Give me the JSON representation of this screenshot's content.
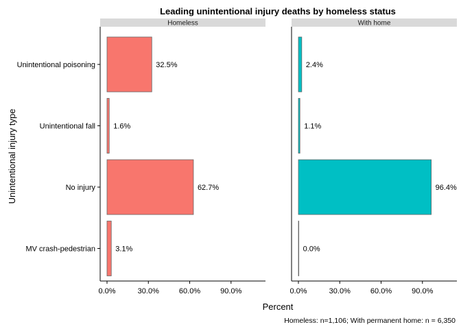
{
  "chart_data": {
    "type": "bar",
    "orientation": "horizontal",
    "title": "Leading unintentional injury deaths by homeless status",
    "xlabel": "Percent",
    "ylabel": "Unintentional injury type",
    "caption": "Homeless: n=1,106; With permanent home: n = 6,350",
    "categories": [
      "Unintentional poisoning",
      "Unintentional fall",
      "No injury",
      "MV crash-pedestrian"
    ],
    "xlim": [
      0,
      115
    ],
    "xticks": [
      0,
      30,
      60,
      90
    ],
    "xtick_labels": [
      "0.0%",
      "30.0%",
      "60.0%",
      "90.0%"
    ],
    "grid": false,
    "legend": "none",
    "facets": [
      {
        "name": "Homeless",
        "color": "#F8766D",
        "values": [
          32.5,
          1.6,
          62.7,
          3.1
        ],
        "labels": [
          "32.5%",
          "1.6%",
          "62.7%",
          "3.1%"
        ]
      },
      {
        "name": "With home",
        "color": "#00BFC4",
        "values": [
          2.4,
          1.1,
          96.4,
          0.0
        ],
        "labels": [
          "2.4%",
          "1.1%",
          "96.4%",
          "0.0%"
        ]
      }
    ]
  }
}
